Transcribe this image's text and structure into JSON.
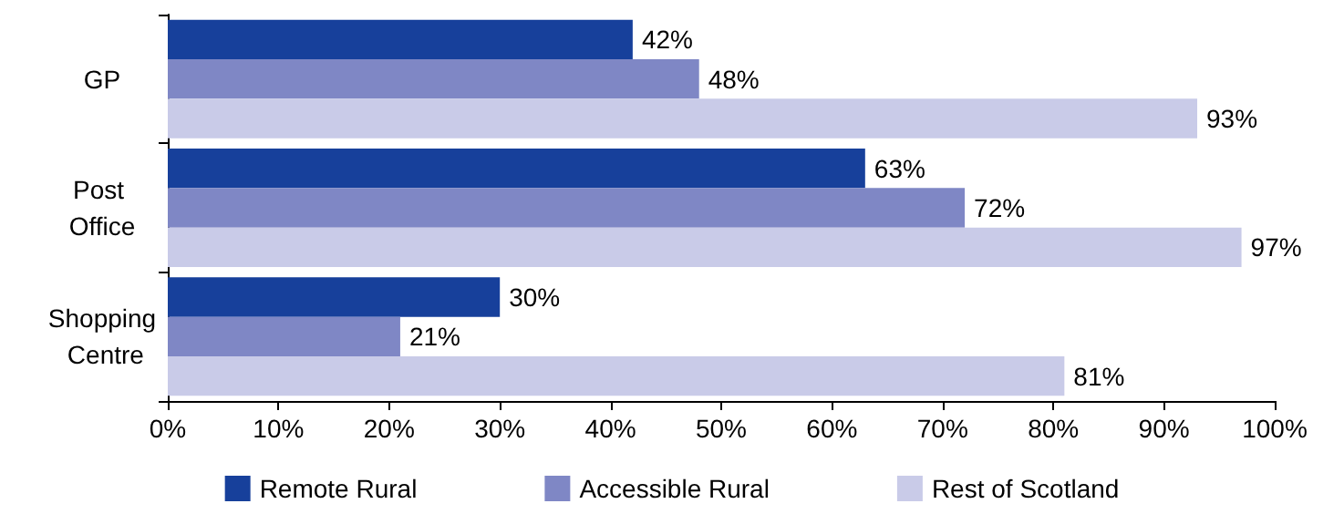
{
  "chart_data": {
    "type": "bar",
    "orientation": "horizontal",
    "categories": [
      "GP",
      "Post Office",
      "Shopping Centre"
    ],
    "series": [
      {
        "name": "Remote Rural",
        "color": "#17409b",
        "values": [
          42,
          63,
          30
        ],
        "value_labels": [
          "42%",
          "63%",
          "30%"
        ]
      },
      {
        "name": "Accessible Rural",
        "color": "#7f87c5",
        "values": [
          48,
          72,
          21
        ],
        "value_labels": [
          "48%",
          "72%",
          "21%"
        ]
      },
      {
        "name": "Rest of Scotland",
        "color": "#c9cbe8",
        "values": [
          93,
          97,
          81
        ],
        "value_labels": [
          "93%",
          "97%",
          "81%"
        ]
      }
    ],
    "xlim": [
      0,
      100
    ],
    "xticks": [
      {
        "value": 0,
        "label": "0%"
      },
      {
        "value": 10,
        "label": "10%"
      },
      {
        "value": 20,
        "label": "20%"
      },
      {
        "value": 30,
        "label": "30%"
      },
      {
        "value": 40,
        "label": "40%"
      },
      {
        "value": 50,
        "label": "50%"
      },
      {
        "value": 60,
        "label": "60%"
      },
      {
        "value": 70,
        "label": "70%"
      },
      {
        "value": 80,
        "label": "80%"
      },
      {
        "value": 90,
        "label": "90%"
      },
      {
        "value": 100,
        "label": "100%"
      }
    ],
    "grid": false,
    "legend": "bottom"
  }
}
